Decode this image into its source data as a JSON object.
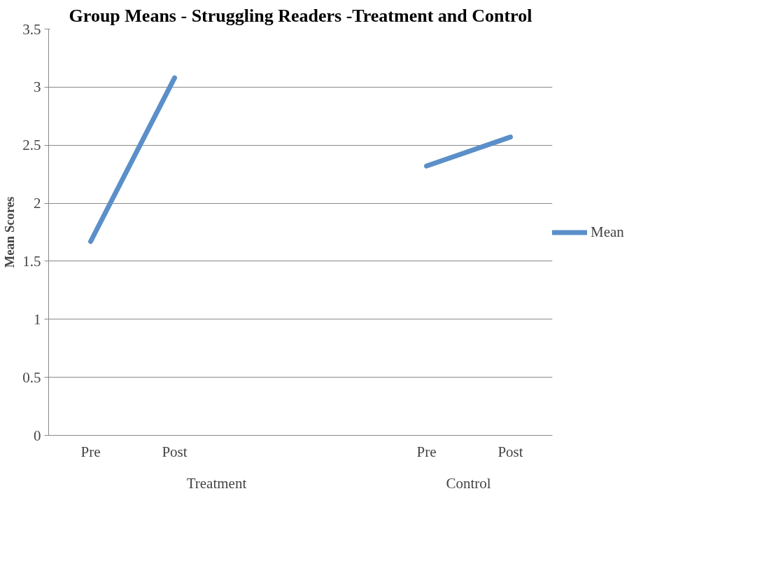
{
  "chart_data": {
    "type": "line",
    "title": "Group Means - Struggling Readers -Treatment and Control",
    "ylabel": "Mean Scores",
    "categories": [
      "Pre",
      "Post",
      null,
      null,
      "Pre",
      "Post"
    ],
    "series": [
      {
        "name": "Mean",
        "color": "#5b8fc9",
        "values": [
          1.67,
          3.08,
          null,
          null,
          2.32,
          2.57
        ]
      }
    ],
    "annotations": [
      "Treatment",
      "Control"
    ],
    "ylim": [
      0,
      3.5
    ],
    "yticks": [
      0,
      0.5,
      1,
      1.5,
      2,
      2.5,
      3,
      3.5
    ],
    "grid": "y",
    "legend": "right",
    "marker": "none",
    "line_style": "solid"
  }
}
